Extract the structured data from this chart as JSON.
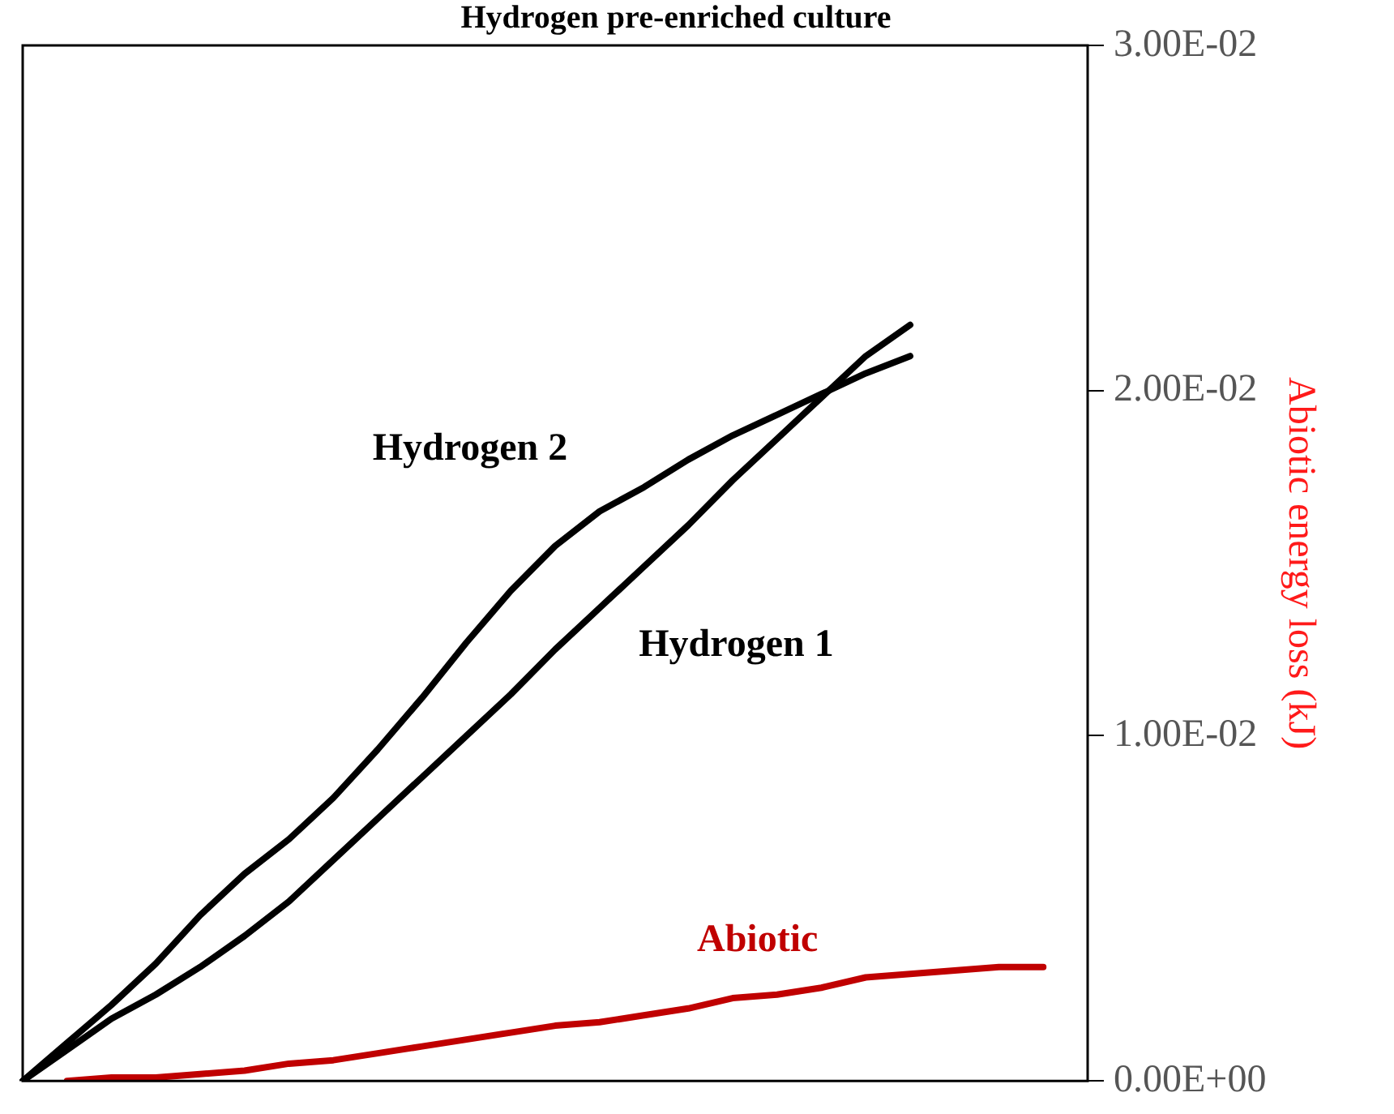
{
  "chart_data": {
    "type": "line",
    "title": "Hydrogen pre-enriched culture",
    "ylabel": "Abiotic energy loss (kJ)",
    "categories": [
      null,
      null,
      null,
      null,
      null,
      null,
      null,
      null,
      null,
      null,
      null,
      null,
      null,
      null,
      null,
      null,
      null,
      null,
      null,
      null,
      null,
      null,
      null,
      null,
      null
    ],
    "series": [
      {
        "name": "Hydrogen 1",
        "color": "#000000",
        "values": [
          0,
          0.0009,
          0.0018,
          0.0025,
          0.0033,
          0.0042,
          0.0052,
          0.0064,
          0.0076,
          0.0088,
          0.01,
          0.0112,
          0.0125,
          0.0137,
          0.0149,
          0.0161,
          0.0174,
          0.0186,
          0.0198,
          0.021,
          0.0219,
          null,
          null,
          null,
          null
        ]
      },
      {
        "name": "Hydrogen 2",
        "color": "#000000",
        "values": [
          0,
          0.0011,
          0.0022,
          0.0034,
          0.0048,
          0.006,
          0.007,
          0.0082,
          0.0096,
          0.0111,
          0.0127,
          0.0142,
          0.0155,
          0.0165,
          0.0172,
          0.018,
          0.0187,
          0.0193,
          0.0199,
          0.0205,
          0.021,
          null,
          null,
          null,
          null
        ]
      },
      {
        "name": "Abiotic",
        "color": "#c00000",
        "values": [
          null,
          0,
          0.0001,
          0.0001,
          0.0002,
          0.0003,
          0.0005,
          0.0006,
          0.0008,
          0.001,
          0.0012,
          0.0014,
          0.0016,
          0.0017,
          0.0019,
          0.0021,
          0.0024,
          0.0025,
          0.0027,
          0.003,
          0.0031,
          0.0032,
          0.0033,
          0.0033,
          null
        ]
      }
    ],
    "ylim": [
      0,
      0.03
    ],
    "yticks": [
      {
        "value": 0,
        "label": "0.00E+00"
      },
      {
        "value": 0.01,
        "label": "1.00E-02"
      },
      {
        "value": 0.02,
        "label": "2.00E-02"
      },
      {
        "value": 0.03,
        "label": "3.00E-02"
      }
    ],
    "tick_labels": "y",
    "marker": "none",
    "line_style": "solid"
  }
}
